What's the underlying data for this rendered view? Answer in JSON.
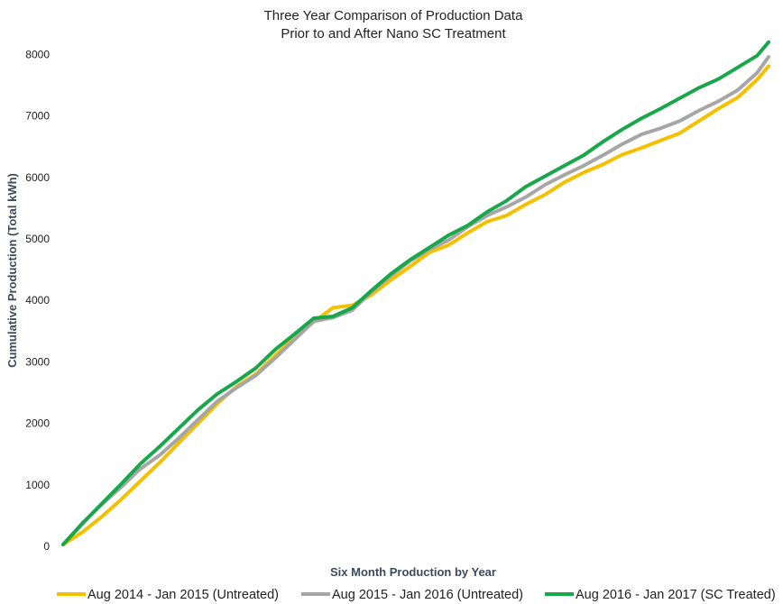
{
  "chart_data": {
    "type": "line",
    "title": "Three Year Comparison of Production Data",
    "subtitle": "Prior to and After Nano SC Treatment",
    "xlabel": "Six Month Production by Year",
    "ylabel": "Cumulative Production (Total kWh)",
    "ylim": [
      0,
      8300
    ],
    "yticks": [
      "0",
      "1000",
      "2000",
      "3000",
      "4000",
      "5000",
      "6000",
      "7000",
      "8000"
    ],
    "x_points": 184,
    "grid": false,
    "legend_position": "bottom",
    "series": [
      {
        "name": "Aug 2014 - Jan 2015 (Untreated)",
        "color": "#f5c000",
        "points": [
          [
            0,
            30
          ],
          [
            5,
            230
          ],
          [
            10,
            480
          ],
          [
            15,
            760
          ],
          [
            20,
            1060
          ],
          [
            25,
            1360
          ],
          [
            30,
            1680
          ],
          [
            35,
            2000
          ],
          [
            40,
            2320
          ],
          [
            45,
            2600
          ],
          [
            50,
            2800
          ],
          [
            55,
            3100
          ],
          [
            60,
            3400
          ],
          [
            65,
            3650
          ],
          [
            70,
            3880
          ],
          [
            75,
            3920
          ],
          [
            80,
            4090
          ],
          [
            85,
            4330
          ],
          [
            90,
            4550
          ],
          [
            95,
            4780
          ],
          [
            100,
            4900
          ],
          [
            105,
            5100
          ],
          [
            110,
            5280
          ],
          [
            115,
            5380
          ],
          [
            120,
            5560
          ],
          [
            125,
            5720
          ],
          [
            130,
            5920
          ],
          [
            135,
            6080
          ],
          [
            140,
            6210
          ],
          [
            145,
            6370
          ],
          [
            150,
            6480
          ],
          [
            155,
            6600
          ],
          [
            160,
            6720
          ],
          [
            165,
            6920
          ],
          [
            170,
            7120
          ],
          [
            175,
            7300
          ],
          [
            180,
            7590
          ],
          [
            183,
            7810
          ]
        ]
      },
      {
        "name": "Aug 2015 - Jan 2016 (Untreated)",
        "color": "#a6a6a6",
        "points": [
          [
            0,
            30
          ],
          [
            5,
            380
          ],
          [
            10,
            680
          ],
          [
            15,
            960
          ],
          [
            20,
            1260
          ],
          [
            25,
            1480
          ],
          [
            30,
            1760
          ],
          [
            35,
            2060
          ],
          [
            40,
            2360
          ],
          [
            45,
            2580
          ],
          [
            50,
            2780
          ],
          [
            55,
            3060
          ],
          [
            60,
            3360
          ],
          [
            65,
            3660
          ],
          [
            70,
            3720
          ],
          [
            75,
            3840
          ],
          [
            80,
            4140
          ],
          [
            85,
            4400
          ],
          [
            90,
            4640
          ],
          [
            95,
            4830
          ],
          [
            100,
            4980
          ],
          [
            105,
            5200
          ],
          [
            110,
            5380
          ],
          [
            115,
            5520
          ],
          [
            120,
            5680
          ],
          [
            125,
            5880
          ],
          [
            130,
            6040
          ],
          [
            135,
            6190
          ],
          [
            140,
            6360
          ],
          [
            145,
            6540
          ],
          [
            150,
            6700
          ],
          [
            155,
            6800
          ],
          [
            160,
            6920
          ],
          [
            165,
            7090
          ],
          [
            170,
            7240
          ],
          [
            175,
            7420
          ],
          [
            180,
            7700
          ],
          [
            183,
            7960
          ]
        ]
      },
      {
        "name": "Aug 2016 - Jan 2017 (SC Treated)",
        "color": "#18a74a",
        "points": [
          [
            0,
            30
          ],
          [
            5,
            370
          ],
          [
            10,
            690
          ],
          [
            15,
            1010
          ],
          [
            20,
            1340
          ],
          [
            25,
            1620
          ],
          [
            30,
            1920
          ],
          [
            35,
            2220
          ],
          [
            40,
            2480
          ],
          [
            45,
            2680
          ],
          [
            50,
            2900
          ],
          [
            55,
            3200
          ],
          [
            60,
            3450
          ],
          [
            65,
            3710
          ],
          [
            70,
            3740
          ],
          [
            75,
            3880
          ],
          [
            80,
            4160
          ],
          [
            85,
            4430
          ],
          [
            90,
            4660
          ],
          [
            95,
            4860
          ],
          [
            100,
            5060
          ],
          [
            105,
            5220
          ],
          [
            110,
            5440
          ],
          [
            115,
            5620
          ],
          [
            120,
            5850
          ],
          [
            125,
            6020
          ],
          [
            130,
            6190
          ],
          [
            135,
            6360
          ],
          [
            140,
            6580
          ],
          [
            145,
            6780
          ],
          [
            150,
            6960
          ],
          [
            155,
            7120
          ],
          [
            160,
            7290
          ],
          [
            165,
            7460
          ],
          [
            170,
            7600
          ],
          [
            175,
            7790
          ],
          [
            180,
            7980
          ],
          [
            183,
            8200
          ]
        ]
      }
    ]
  }
}
